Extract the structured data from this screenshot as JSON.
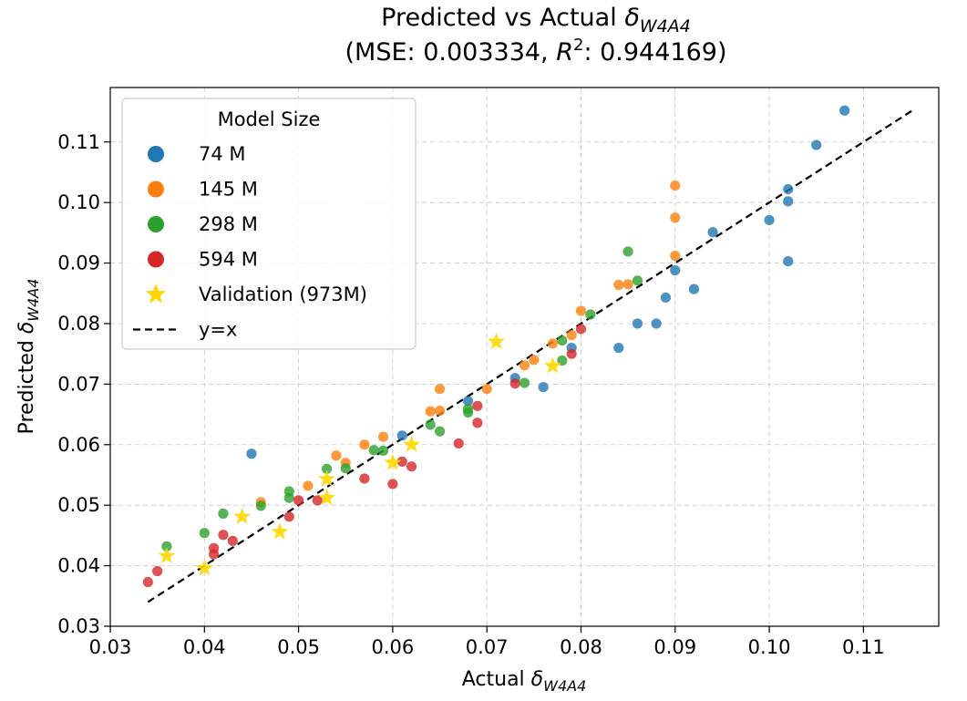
{
  "chart_data": {
    "type": "scatter",
    "title_line1_prefix": "Predicted vs Actual ",
    "title_symbol": "δ",
    "title_subscript": "W4A4",
    "title_line2_prefix": "(MSE: 0.003334, ",
    "title_r": "R",
    "title_sup": "2",
    "title_line2_suffix": ": 0.944169)",
    "xlabel_prefix": "Actual ",
    "xlabel_symbol": "δ",
    "xlabel_subscript": "W4A4",
    "ylabel_prefix": "Predicted ",
    "ylabel_symbol": "δ",
    "ylabel_subscript": "W4A4",
    "xlim": [
      0.03,
      0.118
    ],
    "ylim": [
      0.03,
      0.119
    ],
    "xticks": [
      0.03,
      0.04,
      0.05,
      0.06,
      0.07,
      0.08,
      0.09,
      0.1,
      0.11
    ],
    "xtick_labels": [
      "0.03",
      "0.04",
      "0.05",
      "0.06",
      "0.07",
      "0.08",
      "0.09",
      "0.10",
      "0.11"
    ],
    "yticks": [
      0.03,
      0.04,
      0.05,
      0.06,
      0.07,
      0.08,
      0.09,
      0.1,
      0.11
    ],
    "ytick_labels": [
      "0.03",
      "0.04",
      "0.05",
      "0.06",
      "0.07",
      "0.08",
      "0.09",
      "0.10",
      "0.11"
    ],
    "grid": true,
    "legend_title": "Model Size",
    "legend_position": "upper-left",
    "series": [
      {
        "name": "74 M",
        "color": "#1f77b4",
        "marker": "circle",
        "points": [
          [
            0.045,
            0.0585
          ],
          [
            0.061,
            0.0615
          ],
          [
            0.068,
            0.0672
          ],
          [
            0.073,
            0.071
          ],
          [
            0.076,
            0.0695
          ],
          [
            0.079,
            0.076
          ],
          [
            0.084,
            0.076
          ],
          [
            0.086,
            0.08
          ],
          [
            0.088,
            0.08
          ],
          [
            0.089,
            0.0843
          ],
          [
            0.09,
            0.0888
          ],
          [
            0.092,
            0.0857
          ],
          [
            0.094,
            0.0951
          ],
          [
            0.1,
            0.0971
          ],
          [
            0.102,
            0.1002
          ],
          [
            0.102,
            0.1022
          ],
          [
            0.102,
            0.0903
          ],
          [
            0.105,
            0.1095
          ],
          [
            0.108,
            0.1152
          ]
        ]
      },
      {
        "name": "145 M",
        "color": "#ff7f0e",
        "marker": "circle",
        "points": [
          [
            0.046,
            0.0505
          ],
          [
            0.051,
            0.0532
          ],
          [
            0.054,
            0.0582
          ],
          [
            0.055,
            0.057
          ],
          [
            0.057,
            0.06
          ],
          [
            0.059,
            0.0613
          ],
          [
            0.064,
            0.0655
          ],
          [
            0.065,
            0.0692
          ],
          [
            0.065,
            0.0656
          ],
          [
            0.07,
            0.0692
          ],
          [
            0.074,
            0.0731
          ],
          [
            0.075,
            0.074
          ],
          [
            0.077,
            0.0767
          ],
          [
            0.079,
            0.0781
          ],
          [
            0.08,
            0.0821
          ],
          [
            0.084,
            0.0864
          ],
          [
            0.085,
            0.0865
          ],
          [
            0.09,
            0.1028
          ],
          [
            0.09,
            0.0975
          ],
          [
            0.09,
            0.0912
          ]
        ]
      },
      {
        "name": "298 M",
        "color": "#2ca02c",
        "marker": "circle",
        "points": [
          [
            0.036,
            0.0432
          ],
          [
            0.04,
            0.0454
          ],
          [
            0.042,
            0.0486
          ],
          [
            0.046,
            0.0499
          ],
          [
            0.049,
            0.0523
          ],
          [
            0.049,
            0.0512
          ],
          [
            0.053,
            0.056
          ],
          [
            0.055,
            0.0561
          ],
          [
            0.058,
            0.0591
          ],
          [
            0.059,
            0.059
          ],
          [
            0.064,
            0.0633
          ],
          [
            0.065,
            0.0622
          ],
          [
            0.068,
            0.0659
          ],
          [
            0.068,
            0.0653
          ],
          [
            0.074,
            0.0702
          ],
          [
            0.078,
            0.0739
          ],
          [
            0.078,
            0.0772
          ],
          [
            0.081,
            0.0815
          ],
          [
            0.085,
            0.0919
          ],
          [
            0.086,
            0.0871
          ]
        ]
      },
      {
        "name": "594 M",
        "color": "#d62728",
        "marker": "circle",
        "points": [
          [
            0.034,
            0.0373
          ],
          [
            0.035,
            0.0391
          ],
          [
            0.041,
            0.0429
          ],
          [
            0.041,
            0.0419
          ],
          [
            0.042,
            0.0451
          ],
          [
            0.043,
            0.0441
          ],
          [
            0.049,
            0.0481
          ],
          [
            0.05,
            0.0508
          ],
          [
            0.052,
            0.0508
          ],
          [
            0.057,
            0.0544
          ],
          [
            0.06,
            0.0535
          ],
          [
            0.061,
            0.0572
          ],
          [
            0.062,
            0.0564
          ],
          [
            0.067,
            0.0602
          ],
          [
            0.069,
            0.0664
          ],
          [
            0.069,
            0.0636
          ],
          [
            0.073,
            0.0701
          ],
          [
            0.079,
            0.075
          ],
          [
            0.08,
            0.0791
          ]
        ]
      },
      {
        "name": "Validation (973M)",
        "color": "#ffd700",
        "marker": "star",
        "points": [
          [
            0.036,
            0.0416
          ],
          [
            0.04,
            0.0396
          ],
          [
            0.044,
            0.0481
          ],
          [
            0.048,
            0.0456
          ],
          [
            0.053,
            0.0543
          ],
          [
            0.053,
            0.0512
          ],
          [
            0.06,
            0.057
          ],
          [
            0.062,
            0.06
          ],
          [
            0.071,
            0.077
          ],
          [
            0.077,
            0.073
          ]
        ]
      }
    ],
    "reference_line": {
      "name": "y=x",
      "color": "#000000",
      "style": "dashed",
      "from": 0.034,
      "to": 0.1155
    }
  }
}
